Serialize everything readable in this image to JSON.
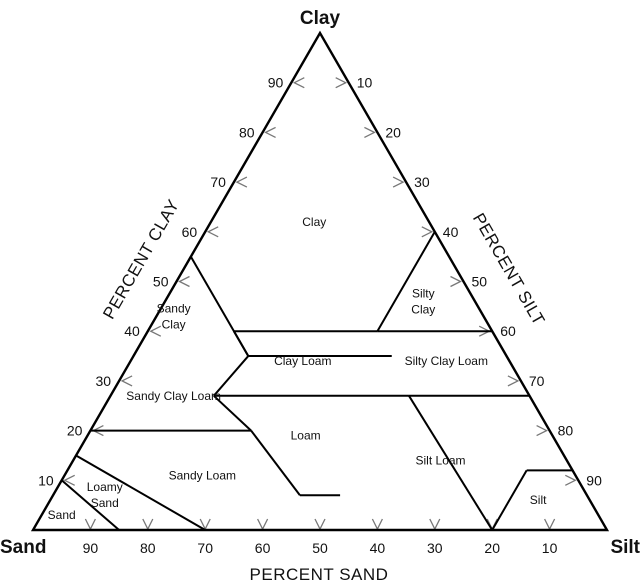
{
  "corners": {
    "top": "Clay",
    "left": "Sand",
    "right": "Silt"
  },
  "axis_titles": {
    "clay": "PERCENT CLAY",
    "silt": "PERCENT SILT",
    "sand": "PERCENT SAND"
  },
  "clay_ticks": [
    "10",
    "20",
    "30",
    "40",
    "50",
    "60",
    "70",
    "80",
    "90"
  ],
  "silt_ticks": [
    "10",
    "20",
    "30",
    "40",
    "50",
    "60",
    "70",
    "80",
    "90"
  ],
  "sand_ticks": [
    "90",
    "80",
    "70",
    "60",
    "50",
    "40",
    "30",
    "20",
    "10"
  ],
  "regions": [
    {
      "id": "clay",
      "lines": [
        "Clay"
      ]
    },
    {
      "id": "sandy-clay",
      "lines": [
        "Sandy",
        "Clay"
      ]
    },
    {
      "id": "silty-clay",
      "lines": [
        "Silty",
        "Clay"
      ]
    },
    {
      "id": "clay-loam",
      "lines": [
        "Clay Loam"
      ]
    },
    {
      "id": "silty-clay-loam",
      "lines": [
        "Silty Clay Loam"
      ]
    },
    {
      "id": "sandy-clay-loam",
      "lines": [
        "Sandy Clay Loam"
      ]
    },
    {
      "id": "loam",
      "lines": [
        "Loam"
      ]
    },
    {
      "id": "sandy-loam",
      "lines": [
        "Sandy Loam"
      ]
    },
    {
      "id": "silt-loam",
      "lines": [
        "Silt Loam"
      ]
    },
    {
      "id": "loamy-sand",
      "lines": [
        "Loamy",
        "Sand"
      ]
    },
    {
      "id": "sand",
      "lines": [
        "Sand"
      ]
    },
    {
      "id": "silt",
      "lines": [
        "Silt"
      ]
    }
  ]
}
